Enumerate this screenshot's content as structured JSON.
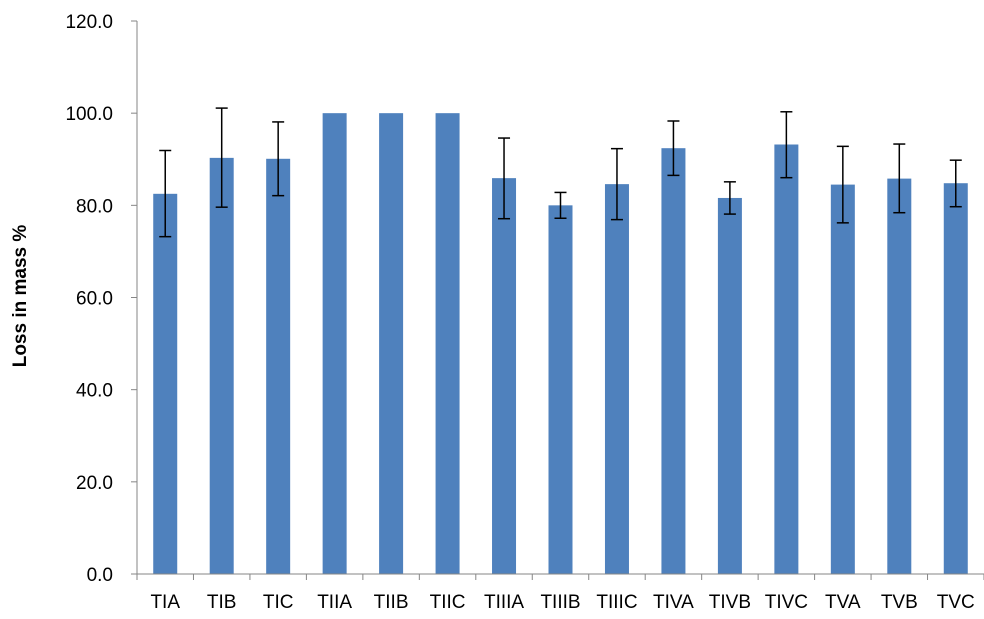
{
  "chart_data": {
    "type": "bar",
    "title": "",
    "xlabel": "",
    "ylabel": "Loss in mass %",
    "ylim": [
      0,
      120
    ],
    "yticks": [
      "0.0",
      "20.0",
      "40.0",
      "60.0",
      "80.0",
      "100.0",
      "120.0"
    ],
    "grid": false,
    "legend": "none",
    "bar_color": "#4f81bd",
    "errorbar_color": "#000000",
    "categories": [
      "TIA",
      "TIB",
      "TIC",
      "TIIA",
      "TIIB",
      "TIIC",
      "TIIIA",
      "TIIIB",
      "TIIIC",
      "TIVA",
      "TIVB",
      "TIVC",
      "TVA",
      "TVB",
      "TVC"
    ],
    "values": [
      82.5,
      90.3,
      90.1,
      100.0,
      100.0,
      100.0,
      85.9,
      80.0,
      84.6,
      92.4,
      81.6,
      93.2,
      84.5,
      85.8,
      84.8
    ],
    "error_low": [
      73.2,
      79.6,
      82.1,
      100.0,
      100.0,
      100.0,
      77.1,
      77.2,
      76.9,
      86.5,
      78.1,
      86.0,
      76.2,
      78.4,
      79.7
    ],
    "error_high": [
      91.9,
      101.1,
      98.1,
      100.0,
      100.0,
      100.0,
      94.6,
      82.8,
      92.3,
      98.3,
      85.1,
      100.3,
      92.8,
      93.3,
      89.8
    ]
  }
}
